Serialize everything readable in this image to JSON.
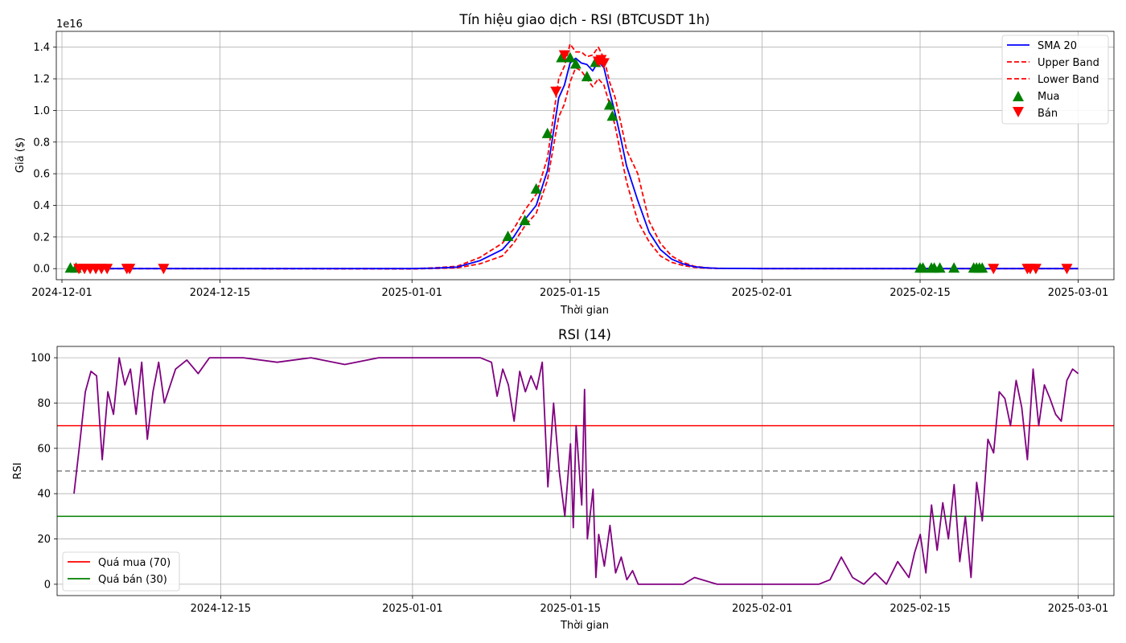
{
  "colors": {
    "sma": "#0000ff",
    "band": "#ff0000",
    "buy": "#008000",
    "sell": "#ff0000",
    "rsi": "#800080",
    "overbought": "#ff0000",
    "oversold": "#008000",
    "midline": "#808080",
    "grid": "#b0b0b0"
  },
  "chart_data": [
    {
      "type": "line",
      "title": "Tín hiệu giao dịch - RSI (BTCUSDT 1h)",
      "xlabel": "Thời gian",
      "ylabel": "Giá ($)",
      "y_offset_label": "1e16",
      "y_scale": 1e+16,
      "xlim": [
        "2024-11-30T12:00",
        "2025-03-04T04:00"
      ],
      "ylim": [
        -0.07,
        1.5
      ],
      "x_ticks": [
        "2024-12-01",
        "2024-12-15",
        "2025-01-01",
        "2025-01-15",
        "2025-02-01",
        "2025-02-15",
        "2025-03-01"
      ],
      "y_ticks": [
        "0.0",
        "0.2",
        "0.4",
        "0.6",
        "0.8",
        "1.0",
        "1.2",
        "1.4"
      ],
      "grid": true,
      "legend_position": "top-right",
      "series": [
        {
          "name": "SMA 20",
          "style": "solid",
          "x": [
            "2024-12-02",
            "2024-12-15",
            "2025-01-01",
            "2025-01-03",
            "2025-01-05",
            "2025-01-07",
            "2025-01-09",
            "2025-01-10",
            "2025-01-11",
            "2025-01-12",
            "2025-01-13",
            "2025-01-13T12:00",
            "2025-01-14",
            "2025-01-14T12:00",
            "2025-01-15",
            "2025-01-15T12:00",
            "2025-01-16",
            "2025-01-16T12:00",
            "2025-01-17",
            "2025-01-17T12:00",
            "2025-01-18",
            "2025-01-18T12:00",
            "2025-01-19",
            "2025-01-19T12:00",
            "2025-01-20",
            "2025-01-21",
            "2025-01-22",
            "2025-01-23",
            "2025-01-24",
            "2025-01-25",
            "2025-01-26",
            "2025-01-27",
            "2025-01-28",
            "2025-02-01",
            "2025-02-15",
            "2025-03-01"
          ],
          "values": [
            0,
            0,
            0,
            0.003,
            0.01,
            0.05,
            0.12,
            0.2,
            0.31,
            0.4,
            0.62,
            0.85,
            1.08,
            1.16,
            1.3,
            1.33,
            1.3,
            1.29,
            1.25,
            1.31,
            1.27,
            1.12,
            0.98,
            0.82,
            0.65,
            0.43,
            0.23,
            0.12,
            0.06,
            0.03,
            0.012,
            0.005,
            0.002,
            0,
            0,
            0
          ]
        },
        {
          "name": "Upper Band",
          "style": "dashed",
          "x": [
            "2024-12-02",
            "2024-12-15",
            "2025-01-01",
            "2025-01-03",
            "2025-01-05",
            "2025-01-07",
            "2025-01-09",
            "2025-01-10",
            "2025-01-11",
            "2025-01-12",
            "2025-01-13",
            "2025-01-13T12:00",
            "2025-01-14",
            "2025-01-14T12:00",
            "2025-01-15",
            "2025-01-15T12:00",
            "2025-01-16",
            "2025-01-16T12:00",
            "2025-01-17",
            "2025-01-17T12:00",
            "2025-01-18",
            "2025-01-18T12:00",
            "2025-01-19",
            "2025-01-19T12:00",
            "2025-01-20",
            "2025-01-21",
            "2025-01-22",
            "2025-01-23",
            "2025-01-24",
            "2025-01-25",
            "2025-01-26",
            "2025-01-27",
            "2025-01-28",
            "2025-02-01",
            "2025-02-15",
            "2025-03-01"
          ],
          "values": [
            0,
            0,
            0,
            0.005,
            0.015,
            0.07,
            0.16,
            0.25,
            0.37,
            0.47,
            0.7,
            0.95,
            1.2,
            1.28,
            1.42,
            1.37,
            1.37,
            1.34,
            1.35,
            1.4,
            1.33,
            1.18,
            1.08,
            0.92,
            0.75,
            0.6,
            0.3,
            0.16,
            0.08,
            0.04,
            0.015,
            0.006,
            0.002,
            0,
            0,
            0
          ]
        },
        {
          "name": "Lower Band",
          "style": "dashed",
          "x": [
            "2024-12-02",
            "2024-12-15",
            "2025-01-01",
            "2025-01-03",
            "2025-01-05",
            "2025-01-07",
            "2025-01-09",
            "2025-01-10",
            "2025-01-11",
            "2025-01-12",
            "2025-01-13",
            "2025-01-13T12:00",
            "2025-01-14",
            "2025-01-14T12:00",
            "2025-01-15",
            "2025-01-15T12:00",
            "2025-01-16",
            "2025-01-16T12:00",
            "2025-01-17",
            "2025-01-17T12:00",
            "2025-01-18",
            "2025-01-18T12:00",
            "2025-01-19",
            "2025-01-19T12:00",
            "2025-01-20",
            "2025-01-21",
            "2025-01-22",
            "2025-01-23",
            "2025-01-24",
            "2025-01-25",
            "2025-01-26",
            "2025-01-27",
            "2025-01-28",
            "2025-02-01",
            "2025-02-15",
            "2025-03-01"
          ],
          "values": [
            0,
            0,
            -0.002,
            0.001,
            0.005,
            0.03,
            0.08,
            0.16,
            0.27,
            0.35,
            0.56,
            0.76,
            0.96,
            1.04,
            1.18,
            1.27,
            1.25,
            1.2,
            1.15,
            1.2,
            1.16,
            1.04,
            0.9,
            0.72,
            0.55,
            0.3,
            0.17,
            0.08,
            0.04,
            0.02,
            0.008,
            0.003,
            0.001,
            0,
            0,
            0
          ]
        }
      ],
      "markers": [
        {
          "name": "Mua",
          "shape": "triangle-up",
          "x": [
            "2024-12-01T18:00",
            "2024-12-02T06:00",
            "2025-01-09T12:00",
            "2025-01-11",
            "2025-01-12",
            "2025-01-13",
            "2025-01-14T06:00",
            "2025-01-15",
            "2025-01-15T12:00",
            "2025-01-16T12:00",
            "2025-01-17T06:00",
            "2025-01-18T12:00",
            "2025-01-18T18:00",
            "2025-02-15",
            "2025-02-15T06:00",
            "2025-02-16",
            "2025-02-16T06:00",
            "2025-02-16T18:00",
            "2025-02-18",
            "2025-02-19T18:00",
            "2025-02-20",
            "2025-02-20T06:00",
            "2025-02-20T12:00"
          ],
          "values": [
            0,
            0,
            0.2,
            0.3,
            0.5,
            0.85,
            1.33,
            1.33,
            1.29,
            1.21,
            1.3,
            1.03,
            0.96,
            0,
            0,
            0,
            0,
            0,
            0,
            0,
            0,
            0,
            0
          ]
        },
        {
          "name": "Bán",
          "shape": "triangle-down",
          "x": [
            "2024-12-02T12:00",
            "2024-12-03",
            "2024-12-03T12:00",
            "2024-12-04",
            "2024-12-04T12:00",
            "2024-12-05",
            "2024-12-06T18:00",
            "2024-12-07",
            "2024-12-10",
            "2025-01-13T18:00",
            "2025-01-14T12:00",
            "2025-01-17T12:00",
            "2025-01-17T18:00",
            "2025-01-18",
            "2025-02-21T12:00",
            "2025-02-24T12:00",
            "2025-02-24T18:00",
            "2025-02-25T06:00",
            "2025-02-28"
          ],
          "values": [
            0,
            0,
            0,
            0,
            0,
            0,
            0,
            0,
            0,
            1.12,
            1.35,
            1.31,
            1.32,
            1.3,
            0,
            0,
            0,
            0,
            0
          ]
        }
      ],
      "legend": [
        "SMA 20",
        "Upper Band",
        "Lower Band",
        "Mua",
        "Bán"
      ]
    },
    {
      "type": "line",
      "title": "RSI (14)",
      "xlabel": "Thời gian",
      "ylabel": "RSI",
      "xlim": [
        "2024-11-30T12:00",
        "2025-03-04T04:00"
      ],
      "ylim": [
        -5,
        105
      ],
      "x_ticks": [
        "2024-12-15",
        "2025-01-01",
        "2025-01-15",
        "2025-02-01",
        "2025-02-15",
        "2025-03-01"
      ],
      "y_ticks": [
        "0",
        "20",
        "40",
        "60",
        "80",
        "100"
      ],
      "grid": true,
      "legend_position": "bottom-left",
      "series": [
        {
          "name": "RSI",
          "style": "solid",
          "x": [
            "2024-12-02",
            "2024-12-02T12:00",
            "2024-12-03",
            "2024-12-03T12:00",
            "2024-12-04",
            "2024-12-04T12:00",
            "2024-12-05",
            "2024-12-05T12:00",
            "2024-12-06",
            "2024-12-06T12:00",
            "2024-12-07",
            "2024-12-07T12:00",
            "2024-12-08",
            "2024-12-08T12:00",
            "2024-12-09",
            "2024-12-09T12:00",
            "2024-12-10",
            "2024-12-11",
            "2024-12-12",
            "2024-12-13",
            "2024-12-14",
            "2024-12-15",
            "2024-12-17",
            "2024-12-20",
            "2024-12-23",
            "2024-12-26",
            "2024-12-29",
            "2025-01-01",
            "2025-01-04",
            "2025-01-07",
            "2025-01-08",
            "2025-01-08T12:00",
            "2025-01-09",
            "2025-01-09T12:00",
            "2025-01-10",
            "2025-01-10T12:00",
            "2025-01-11",
            "2025-01-11T12:00",
            "2025-01-12",
            "2025-01-12T12:00",
            "2025-01-13",
            "2025-01-13T12:00",
            "2025-01-14",
            "2025-01-14T12:00",
            "2025-01-15",
            "2025-01-15T06:00",
            "2025-01-15T12:00",
            "2025-01-16",
            "2025-01-16T06:00",
            "2025-01-16T12:00",
            "2025-01-17",
            "2025-01-17T06:00",
            "2025-01-17T12:00",
            "2025-01-18",
            "2025-01-18T12:00",
            "2025-01-19",
            "2025-01-19T12:00",
            "2025-01-20",
            "2025-01-20T12:00",
            "2025-01-21",
            "2025-01-21T12:00",
            "2025-01-22",
            "2025-01-23",
            "2025-01-25",
            "2025-01-26",
            "2025-01-28",
            "2025-01-31",
            "2025-02-02",
            "2025-02-04",
            "2025-02-06",
            "2025-02-07",
            "2025-02-08",
            "2025-02-09",
            "2025-02-10",
            "2025-02-11",
            "2025-02-12",
            "2025-02-13",
            "2025-02-14",
            "2025-02-14T12:00",
            "2025-02-15",
            "2025-02-15T12:00",
            "2025-02-16",
            "2025-02-16T12:00",
            "2025-02-17",
            "2025-02-17T12:00",
            "2025-02-18",
            "2025-02-18T12:00",
            "2025-02-19",
            "2025-02-19T12:00",
            "2025-02-20",
            "2025-02-20T12:00",
            "2025-02-21",
            "2025-02-21T12:00",
            "2025-02-22",
            "2025-02-22T12:00",
            "2025-02-23",
            "2025-02-23T12:00",
            "2025-02-24",
            "2025-02-24T12:00",
            "2025-02-25",
            "2025-02-25T12:00",
            "2025-02-26",
            "2025-02-26T12:00",
            "2025-02-27",
            "2025-02-27T12:00",
            "2025-02-28",
            "2025-02-28T12:00",
            "2025-03-01"
          ],
          "values": [
            40,
            62,
            85,
            94,
            92,
            55,
            85,
            75,
            100,
            88,
            95,
            75,
            98,
            64,
            85,
            98,
            80,
            95,
            99,
            93,
            100,
            100,
            100,
            98,
            100,
            97,
            100,
            100,
            100,
            100,
            98,
            83,
            95,
            88,
            72,
            94,
            85,
            92,
            86,
            98,
            43,
            80,
            50,
            30,
            62,
            25,
            70,
            35,
            86,
            20,
            42,
            3,
            22,
            8,
            26,
            5,
            12,
            2,
            6,
            0,
            0,
            0,
            0,
            0,
            3,
            0,
            0,
            0,
            0,
            0,
            2,
            12,
            3,
            0,
            5,
            0,
            10,
            3,
            14,
            22,
            5,
            35,
            15,
            36,
            20,
            44,
            10,
            30,
            3,
            45,
            28,
            64,
            58,
            85,
            82,
            70,
            90,
            78,
            55,
            95,
            70,
            88,
            82,
            75,
            72,
            90,
            95,
            93
          ]
        }
      ],
      "reference_lines": [
        {
          "name": "Quá mua (70)",
          "value": 70
        },
        {
          "name": "Quá bán (30)",
          "value": 30
        },
        {
          "name": "",
          "value": 50
        }
      ],
      "legend": [
        "Quá mua (70)",
        "Quá bán (30)"
      ]
    }
  ]
}
